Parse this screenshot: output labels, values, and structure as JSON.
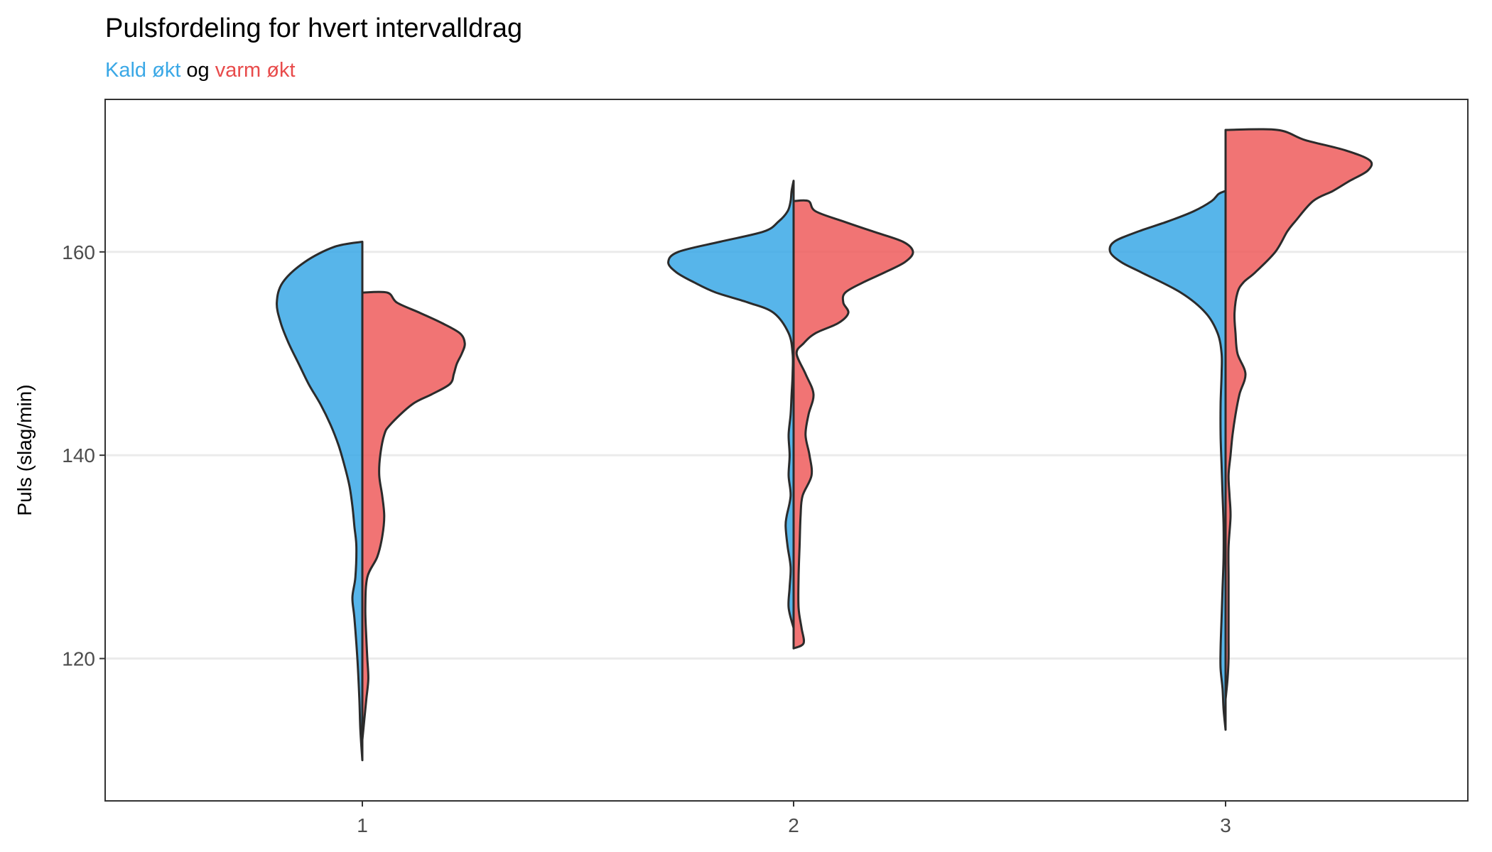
{
  "chart_data": {
    "type": "split-violin",
    "title": "Pulsfordeling for hvert intervalldrag",
    "subtitle": {
      "parts": [
        {
          "text": "Kald økt",
          "color": "#3aa8e6"
        },
        {
          "text": " og ",
          "color": "#000000"
        },
        {
          "text": "varm økt",
          "color": "#e84b4b"
        }
      ]
    },
    "ylabel": "Puls (slag/min)",
    "xlabel": "",
    "ylim": [
      106,
      175
    ],
    "yticks": [
      120,
      140,
      160
    ],
    "categories": [
      "1",
      "2",
      "3"
    ],
    "grid": "horizontal major",
    "series": [
      {
        "name": "Kald økt",
        "side": "left",
        "fill": "#3aa8e6",
        "violins": [
          {
            "category": "1",
            "min": 110,
            "max": 161,
            "profile": [
              [
                110,
                0.0
              ],
              [
                113,
                0.02
              ],
              [
                116,
                0.03
              ],
              [
                120,
                0.05
              ],
              [
                124,
                0.08
              ],
              [
                126,
                0.1
              ],
              [
                128,
                0.07
              ],
              [
                131,
                0.06
              ],
              [
                133,
                0.08
              ],
              [
                135,
                0.1
              ],
              [
                137,
                0.13
              ],
              [
                139,
                0.18
              ],
              [
                141,
                0.24
              ],
              [
                143,
                0.32
              ],
              [
                145,
                0.42
              ],
              [
                147,
                0.54
              ],
              [
                149,
                0.64
              ],
              [
                151,
                0.74
              ],
              [
                153,
                0.82
              ],
              [
                155,
                0.86
              ],
              [
                157,
                0.8
              ],
              [
                159,
                0.58
              ],
              [
                160.5,
                0.28
              ],
              [
                161,
                0.0
              ]
            ]
          },
          {
            "category": "2",
            "min": 123,
            "max": 167,
            "profile": [
              [
                123,
                0.0
              ],
              [
                125,
                0.05
              ],
              [
                127,
                0.04
              ],
              [
                129,
                0.03
              ],
              [
                131,
                0.06
              ],
              [
                133,
                0.08
              ],
              [
                134,
                0.07
              ],
              [
                136,
                0.03
              ],
              [
                138,
                0.05
              ],
              [
                140,
                0.04
              ],
              [
                142,
                0.05
              ],
              [
                144,
                0.03
              ],
              [
                146,
                0.02
              ],
              [
                148,
                0.01
              ],
              [
                150,
                0.01
              ],
              [
                152,
                0.05
              ],
              [
                154,
                0.2
              ],
              [
                155,
                0.45
              ],
              [
                156,
                0.78
              ],
              [
                157,
                1.0
              ],
              [
                158,
                1.18
              ],
              [
                159,
                1.26
              ],
              [
                160,
                1.16
              ],
              [
                161,
                0.74
              ],
              [
                162,
                0.3
              ],
              [
                163,
                0.15
              ],
              [
                164,
                0.06
              ],
              [
                165,
                0.03
              ],
              [
                166,
                0.02
              ],
              [
                167,
                0.0
              ]
            ]
          },
          {
            "category": "3",
            "min": 113,
            "max": 166,
            "profile": [
              [
                113,
                0.0
              ],
              [
                115,
                0.02
              ],
              [
                117,
                0.03
              ],
              [
                119,
                0.05
              ],
              [
                121,
                0.05
              ],
              [
                124,
                0.04
              ],
              [
                127,
                0.03
              ],
              [
                130,
                0.02
              ],
              [
                133,
                0.02
              ],
              [
                136,
                0.03
              ],
              [
                139,
                0.04
              ],
              [
                142,
                0.05
              ],
              [
                145,
                0.05
              ],
              [
                148,
                0.04
              ],
              [
                150,
                0.04
              ],
              [
                152,
                0.08
              ],
              [
                154,
                0.2
              ],
              [
                156,
                0.45
              ],
              [
                158,
                0.85
              ],
              [
                159,
                1.05
              ],
              [
                160,
                1.16
              ],
              [
                161,
                1.12
              ],
              [
                162,
                0.88
              ],
              [
                163,
                0.58
              ],
              [
                164,
                0.32
              ],
              [
                165,
                0.14
              ],
              [
                165.7,
                0.07
              ],
              [
                166,
                0.0
              ]
            ]
          }
        ]
      },
      {
        "name": "varm økt",
        "side": "right",
        "fill": "#ee5c5c",
        "violins": [
          {
            "category": "1",
            "min": 112,
            "max": 156,
            "profile": [
              [
                112,
                0.0
              ],
              [
                114,
                0.02
              ],
              [
                116,
                0.04
              ],
              [
                118,
                0.06
              ],
              [
                120,
                0.05
              ],
              [
                122,
                0.04
              ],
              [
                125,
                0.03
              ],
              [
                128,
                0.05
              ],
              [
                130,
                0.15
              ],
              [
                132,
                0.2
              ],
              [
                134,
                0.22
              ],
              [
                136,
                0.2
              ],
              [
                138,
                0.17
              ],
              [
                140,
                0.18
              ],
              [
                142,
                0.22
              ],
              [
                143,
                0.28
              ],
              [
                145,
                0.5
              ],
              [
                146,
                0.7
              ],
              [
                147,
                0.88
              ],
              [
                148,
                0.92
              ],
              [
                149,
                0.95
              ],
              [
                150,
                1.0
              ],
              [
                151,
                1.03
              ],
              [
                152,
                0.98
              ],
              [
                153,
                0.8
              ],
              [
                154,
                0.58
              ],
              [
                155,
                0.35
              ],
              [
                156,
                0.25
              ],
              [
                156,
                0.0
              ]
            ]
          },
          {
            "category": "2",
            "min": 121,
            "max": 165,
            "profile": [
              [
                121,
                0.0
              ],
              [
                121.5,
                0.1
              ],
              [
                123,
                0.08
              ],
              [
                125,
                0.05
              ],
              [
                128,
                0.05
              ],
              [
                131,
                0.06
              ],
              [
                134,
                0.07
              ],
              [
                136,
                0.09
              ],
              [
                138,
                0.18
              ],
              [
                140,
                0.16
              ],
              [
                142,
                0.12
              ],
              [
                144,
                0.15
              ],
              [
                146,
                0.2
              ],
              [
                148,
                0.12
              ],
              [
                150,
                0.03
              ],
              [
                151,
                0.1
              ],
              [
                152,
                0.22
              ],
              [
                153,
                0.45
              ],
              [
                154,
                0.55
              ],
              [
                155,
                0.5
              ],
              [
                156,
                0.52
              ],
              [
                157,
                0.7
              ],
              [
                158,
                0.92
              ],
              [
                159,
                1.12
              ],
              [
                160,
                1.2
              ],
              [
                161,
                1.1
              ],
              [
                162,
                0.8
              ],
              [
                163,
                0.5
              ],
              [
                164,
                0.22
              ],
              [
                165,
                0.15
              ],
              [
                165,
                0.0
              ]
            ]
          },
          {
            "category": "3",
            "min": 116,
            "max": 172,
            "profile": [
              [
                116,
                0.0
              ],
              [
                118,
                0.02
              ],
              [
                120,
                0.03
              ],
              [
                122,
                0.03
              ],
              [
                125,
                0.03
              ],
              [
                128,
                0.03
              ],
              [
                131,
                0.03
              ],
              [
                134,
                0.05
              ],
              [
                136,
                0.04
              ],
              [
                138,
                0.03
              ],
              [
                140,
                0.05
              ],
              [
                142,
                0.07
              ],
              [
                144,
                0.1
              ],
              [
                146,
                0.14
              ],
              [
                148,
                0.2
              ],
              [
                150,
                0.12
              ],
              [
                152,
                0.1
              ],
              [
                154,
                0.09
              ],
              [
                156,
                0.12
              ],
              [
                157,
                0.18
              ],
              [
                158,
                0.3
              ],
              [
                160,
                0.5
              ],
              [
                162,
                0.62
              ],
              [
                163,
                0.7
              ],
              [
                165,
                0.88
              ],
              [
                166,
                1.08
              ],
              [
                167,
                1.25
              ],
              [
                168,
                1.43
              ],
              [
                169,
                1.45
              ],
              [
                170,
                1.2
              ],
              [
                171,
                0.8
              ],
              [
                172,
                0.52
              ],
              [
                172,
                0.0
              ]
            ]
          }
        ]
      }
    ]
  }
}
